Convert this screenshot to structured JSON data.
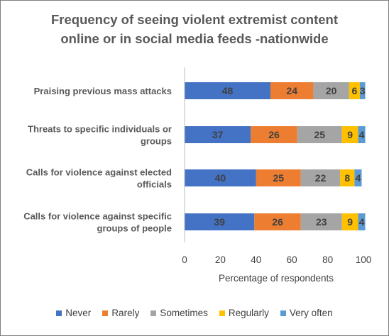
{
  "chart_data": {
    "type": "bar",
    "orientation": "horizontal",
    "stacked": true,
    "title": [
      "Frequency of seeing violent extremist content",
      "online or in social media feeds -nationwide"
    ],
    "xlabel": "Percentage of respondents",
    "ylabel": "",
    "xlim": [
      0,
      100
    ],
    "xticks": [
      0,
      20,
      40,
      60,
      80,
      100
    ],
    "grid": false,
    "legend_position": "bottom",
    "categories": [
      [
        "Praising previous mass attacks"
      ],
      [
        "Threats to specific individuals or",
        "groups"
      ],
      [
        "Calls for violence against elected",
        "officials"
      ],
      [
        "Calls for violence against specific",
        "groups of people"
      ]
    ],
    "series": [
      {
        "name": "Never",
        "color": "#4472C4",
        "values": [
          48,
          37,
          40,
          39
        ]
      },
      {
        "name": "Rarely",
        "color": "#ED7D31",
        "values": [
          24,
          26,
          25,
          26
        ]
      },
      {
        "name": "Sometimes",
        "color": "#A5A5A5",
        "values": [
          20,
          25,
          22,
          23
        ]
      },
      {
        "name": "Regularly",
        "color": "#FFC000",
        "values": [
          6,
          9,
          8,
          9
        ]
      },
      {
        "name": "Very often",
        "color": "#5B9BD5",
        "values": [
          3,
          4,
          4,
          4
        ]
      }
    ]
  }
}
